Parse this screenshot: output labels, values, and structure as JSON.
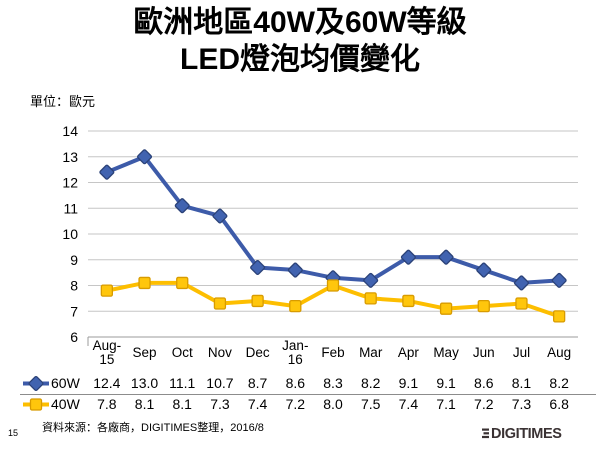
{
  "title": {
    "line1": "歐洲地區40W及60W等級",
    "line2": "LED燈泡均價變化"
  },
  "unit_label": "單位：歐元",
  "chart_data": {
    "type": "line",
    "title": "歐洲地區40W及60W等級LED燈泡均價變化",
    "ylabel": "歐元",
    "xlabel": "",
    "ylim": [
      6,
      14
    ],
    "ytick_step": 1,
    "grid": true,
    "legend_position": "data-table-left",
    "categories": [
      "Aug-\n15",
      "Sep",
      "Oct",
      "Nov",
      "Dec",
      "Jan-\n16",
      "Feb",
      "Mar",
      "Apr",
      "May",
      "Jun",
      "Jul",
      "Aug"
    ],
    "series": [
      {
        "name": "60W",
        "marker": "diamond",
        "values": [
          12.4,
          13.0,
          11.1,
          10.7,
          8.7,
          8.6,
          8.3,
          8.2,
          9.1,
          9.1,
          8.6,
          8.1,
          8.2
        ]
      },
      {
        "name": "40W",
        "marker": "square",
        "values": [
          7.8,
          8.1,
          8.1,
          7.3,
          7.4,
          7.2,
          8.0,
          7.5,
          7.4,
          7.1,
          7.2,
          7.3,
          6.8
        ]
      }
    ]
  },
  "colors": {
    "blue_line": "#3D5BA9",
    "blue_fill": "#4163B0",
    "blue_stroke": "#2B4278",
    "yellow_line": "#FDBE00",
    "yellow_fill": "#FFC60C",
    "yellow_stroke": "#D89B00",
    "gridline": "#C6C6C6",
    "axis": "#9B9B9B",
    "separator": "#8C8C8C",
    "text": "#000000",
    "logo": "#3A3233"
  },
  "footer": {
    "page_number": "15",
    "source": "資料來源：各廠商，DIGITIMES整理，2016/8",
    "logo_text": "DIGITIMES"
  }
}
